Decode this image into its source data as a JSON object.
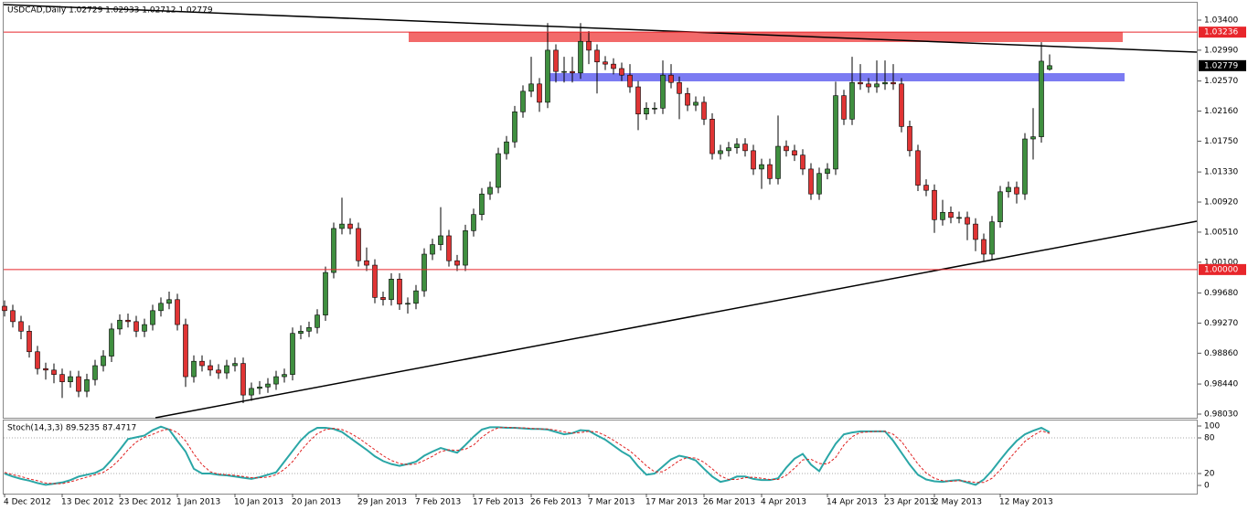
{
  "chart_data": [
    {
      "type": "candlestick",
      "title": "USDCAD,Daily  1.02729 1.02933 1.02712 1.02779",
      "up_color": "#3f8f3f",
      "down_color": "#e03434",
      "categories": [
        "4 Dec 2012",
        null,
        null,
        null,
        null,
        null,
        null,
        "13 Dec 2012",
        null,
        null,
        null,
        null,
        null,
        null,
        "23 Dec 2012",
        null,
        null,
        null,
        null,
        null,
        null,
        "1 Jan 2013",
        null,
        null,
        null,
        null,
        null,
        null,
        "10 Jan 2013",
        null,
        null,
        null,
        null,
        null,
        null,
        "20 Jan 2013",
        null,
        null,
        null,
        null,
        null,
        null,
        null,
        "29 Jan 2013",
        null,
        null,
        null,
        null,
        null,
        null,
        "7 Feb 2013",
        null,
        null,
        null,
        null,
        null,
        null,
        "17 Feb 2013",
        null,
        null,
        null,
        null,
        null,
        null,
        "26 Feb 2013",
        null,
        null,
        null,
        null,
        null,
        null,
        "7 Mar 2013",
        null,
        null,
        null,
        null,
        null,
        null,
        "17 Mar 2013",
        null,
        null,
        null,
        null,
        null,
        null,
        "26 Mar 2013",
        null,
        null,
        null,
        null,
        null,
        null,
        "4 Apr 2013",
        null,
        null,
        null,
        null,
        null,
        null,
        null,
        "14 Apr 2013",
        null,
        null,
        null,
        null,
        null,
        null,
        "23 Apr 2013",
        null,
        null,
        null,
        null,
        null,
        "2 May 2013",
        null,
        null,
        null,
        null,
        null,
        null,
        null,
        "12 May 2013",
        null,
        null,
        null,
        null,
        null,
        null
      ],
      "open": [
        0.995,
        0.9944,
        0.9929,
        0.9916,
        0.9888,
        0.9865,
        0.9863,
        0.9857,
        0.9847,
        0.9854,
        0.9834,
        0.985,
        0.9869,
        0.9882,
        0.9919,
        0.9931,
        0.9929,
        0.9916,
        0.9925,
        0.9944,
        0.9954,
        0.9959,
        0.9925,
        0.9854,
        0.9875,
        0.9869,
        0.9863,
        0.9859,
        0.9869,
        0.9872,
        0.9829,
        0.9838,
        0.984,
        0.9844,
        0.9854,
        0.9857,
        0.9913,
        0.9916,
        0.9921,
        0.9938,
        0.9996,
        1.0056,
        1.0062,
        1.0056,
        1.0012,
        1.0006,
        0.9962,
        0.9959,
        0.9987,
        0.9953,
        0.9954,
        0.9971,
        1.0021,
        1.0034,
        1.0046,
        1.0012,
        1.0006,
        1.0053,
        1.0075,
        1.0103,
        1.0112,
        1.0158,
        1.0174,
        1.0215,
        1.0243,
        1.0253,
        1.0228,
        1.0299,
        1.027,
        1.027,
        1.0268,
        1.0311,
        1.0299,
        1.0283,
        1.028,
        1.0274,
        1.0265,
        1.0249,
        1.0212,
        1.022,
        1.022,
        1.0265,
        1.0255,
        1.024,
        1.0224,
        1.0228,
        1.0205,
        1.0158,
        1.0162,
        1.0166,
        1.0171,
        1.0162,
        1.0137,
        1.0143,
        1.0124,
        1.0168,
        1.0162,
        1.0156,
        1.0137,
        1.0103,
        1.0131,
        1.0137,
        1.0237,
        1.0205,
        1.0255,
        1.0253,
        1.0249,
        1.0253,
        1.0255,
        1.0253,
        1.0195,
        1.0162,
        1.0115,
        1.0108,
        1.0068,
        1.0078,
        1.0071,
        1.0071,
        1.0062,
        1.0041,
        1.0021,
        1.0065,
        1.0106,
        1.0112,
        1.0103,
        1.0178,
        1.0181,
        1.02729
      ],
      "high": [
        0.9958,
        0.9952,
        0.9937,
        0.9924,
        0.9896,
        0.9873,
        0.9872,
        0.9865,
        0.9862,
        0.9862,
        0.9858,
        0.9877,
        0.989,
        0.9927,
        0.9939,
        0.994,
        0.9937,
        0.9933,
        0.9952,
        0.9962,
        0.997,
        0.9967,
        0.9933,
        0.9883,
        0.9883,
        0.9877,
        0.9871,
        0.9877,
        0.988,
        0.988,
        0.9846,
        0.9848,
        0.9852,
        0.9862,
        0.9865,
        0.9921,
        0.9924,
        0.9929,
        0.9946,
        1.0004,
        1.0064,
        1.0098,
        1.007,
        1.0064,
        1.003,
        1.0014,
        0.997,
        0.9995,
        0.9995,
        0.9962,
        0.9979,
        1.0029,
        1.0042,
        1.0085,
        1.0054,
        1.002,
        1.0061,
        1.0083,
        1.0111,
        1.012,
        1.0166,
        1.0182,
        1.0223,
        1.0251,
        1.029,
        1.0261,
        1.0336,
        1.0307,
        1.029,
        1.029,
        1.0336,
        1.0325,
        1.0307,
        1.0291,
        1.0288,
        1.0282,
        1.028,
        1.0257,
        1.0228,
        1.0228,
        1.0285,
        1.028,
        1.0263,
        1.0248,
        1.0236,
        1.0236,
        1.0213,
        1.017,
        1.0174,
        1.0179,
        1.0179,
        1.017,
        1.0151,
        1.0151,
        1.021,
        1.0176,
        1.017,
        1.0164,
        1.0145,
        1.0139,
        1.0145,
        1.0256,
        1.0245,
        1.029,
        1.028,
        1.0261,
        1.0285,
        1.0285,
        1.028,
        1.0261,
        1.0203,
        1.017,
        1.0123,
        1.0116,
        1.0095,
        1.0086,
        1.0079,
        1.0079,
        1.007,
        1.0049,
        1.0073,
        1.0114,
        1.012,
        1.012,
        1.0186,
        1.022,
        1.031,
        1.02933
      ],
      "low": [
        0.9936,
        0.9921,
        0.9905,
        0.988,
        0.9857,
        0.985,
        0.9845,
        0.9825,
        0.9839,
        0.9826,
        0.9826,
        0.9842,
        0.9861,
        0.9874,
        0.9911,
        0.9921,
        0.9908,
        0.9908,
        0.9917,
        0.9936,
        0.9946,
        0.9917,
        0.984,
        0.9846,
        0.9861,
        0.9855,
        0.9851,
        0.9851,
        0.9861,
        0.9818,
        0.9821,
        0.983,
        0.9832,
        0.9836,
        0.9846,
        0.9849,
        0.9905,
        0.9908,
        0.9913,
        0.993,
        0.9988,
        1.0048,
        1.0048,
        1.0004,
        0.9998,
        0.9954,
        0.9951,
        0.9951,
        0.9945,
        0.994,
        0.9946,
        0.9963,
        1.0013,
        1.0026,
        1.0004,
        0.9998,
        0.9998,
        1.0045,
        1.0067,
        1.0095,
        1.0104,
        1.015,
        1.0166,
        1.0207,
        1.0235,
        1.0215,
        1.022,
        1.0255,
        1.0255,
        1.0255,
        1.026,
        1.028,
        1.024,
        1.0272,
        1.0266,
        1.0257,
        1.0241,
        1.019,
        1.0204,
        1.0212,
        1.0212,
        1.0247,
        1.0205,
        1.0216,
        1.0216,
        1.0197,
        1.015,
        1.015,
        1.0154,
        1.0158,
        1.0154,
        1.0129,
        1.011,
        1.0116,
        1.0116,
        1.0154,
        1.0148,
        1.0129,
        1.0095,
        1.0095,
        1.0123,
        1.0129,
        1.0197,
        1.0197,
        1.0245,
        1.0241,
        1.0241,
        1.0245,
        1.0245,
        1.0187,
        1.0154,
        1.0107,
        1.01,
        1.005,
        1.006,
        1.0063,
        1.0063,
        1.004,
        1.0025,
        1.0012,
        1.0013,
        1.0057,
        1.0098,
        1.009,
        1.0095,
        1.015,
        1.0173,
        1.02712
      ],
      "close": [
        0.9944,
        0.9929,
        0.9916,
        0.9888,
        0.9865,
        0.9863,
        0.9857,
        0.9847,
        0.9854,
        0.9834,
        0.985,
        0.9869,
        0.9882,
        0.9919,
        0.9931,
        0.9929,
        0.9916,
        0.9925,
        0.9944,
        0.9954,
        0.9959,
        0.9925,
        0.9854,
        0.9875,
        0.9869,
        0.9863,
        0.9859,
        0.9869,
        0.9872,
        0.9829,
        0.9838,
        0.984,
        0.9844,
        0.9854,
        0.9857,
        0.9913,
        0.9916,
        0.9921,
        0.9938,
        0.9996,
        1.0056,
        1.0062,
        1.0056,
        1.0012,
        1.0006,
        0.9962,
        0.9959,
        0.9987,
        0.9953,
        0.9954,
        0.9971,
        1.0021,
        1.0034,
        1.0046,
        1.0012,
        1.0006,
        1.0053,
        1.0075,
        1.0103,
        1.0112,
        1.0158,
        1.0174,
        1.0215,
        1.0243,
        1.0253,
        1.0228,
        1.0299,
        1.027,
        1.027,
        1.0268,
        1.0311,
        1.0299,
        1.0283,
        1.028,
        1.0274,
        1.0265,
        1.0249,
        1.0212,
        1.022,
        1.022,
        1.0265,
        1.0255,
        1.024,
        1.0224,
        1.0228,
        1.0205,
        1.0158,
        1.0162,
        1.0166,
        1.0171,
        1.0162,
        1.0137,
        1.0143,
        1.0124,
        1.0168,
        1.0162,
        1.0156,
        1.0137,
        1.0103,
        1.0131,
        1.0137,
        1.0237,
        1.0205,
        1.0255,
        1.0253,
        1.0249,
        1.0253,
        1.0255,
        1.0253,
        1.0195,
        1.0162,
        1.0115,
        1.0108,
        1.0068,
        1.0078,
        1.0071,
        1.0071,
        1.0062,
        1.0041,
        1.0021,
        1.0065,
        1.0106,
        1.0112,
        1.0103,
        1.0178,
        1.0181,
        1.0284,
        1.02779
      ],
      "ylim": [
        0.9798,
        1.03674
      ],
      "yticks": [
        {
          "value": 1.034,
          "label": "1.03400"
        },
        {
          "value": 1.0299,
          "label": "1.02990"
        },
        {
          "value": 1.0257,
          "label": "1.02570"
        },
        {
          "value": 1.0216,
          "label": "1.02160"
        },
        {
          "value": 1.0175,
          "label": "1.01750"
        },
        {
          "value": 1.0133,
          "label": "1.01330"
        },
        {
          "value": 1.0092,
          "label": "1.00920"
        },
        {
          "value": 1.0051,
          "label": "1.00510"
        },
        {
          "value": 1.001,
          "label": "1.00100"
        },
        {
          "value": 0.9968,
          "label": "0.99680"
        },
        {
          "value": 0.9927,
          "label": "0.99270"
        },
        {
          "value": 0.9886,
          "label": "0.98860"
        },
        {
          "value": 0.9844,
          "label": "0.98440"
        },
        {
          "value": 0.9803,
          "label": "0.98030"
        }
      ],
      "markers": [
        {
          "value": 1.03236,
          "label": "1.03236",
          "color": "#e8262b",
          "line": true
        },
        {
          "value": 1.02779,
          "label": "1.02779",
          "color": "#000000",
          "line": false
        },
        {
          "value": 1.0,
          "label": "1.00000",
          "color": "#e8262b",
          "line": true
        }
      ]
    },
    {
      "type": "line",
      "title": "Stoch(14,3,3) 89.5235 87.4717",
      "ylim": [
        -13.8,
        110.8
      ],
      "yticks": [
        100,
        80,
        20,
        0
      ],
      "levels": [
        80,
        20
      ],
      "series": [
        {
          "color": "#2aa6a6",
          "width": 2,
          "dashed": false,
          "values": [
            20,
            15,
            11,
            8,
            4,
            1,
            3,
            5,
            9,
            15,
            18,
            21,
            28,
            43,
            60,
            78,
            81,
            84,
            93,
            99,
            94,
            75,
            57,
            28,
            20,
            20,
            18,
            17,
            15,
            13,
            11,
            14,
            18,
            22,
            40,
            58,
            76,
            89,
            97,
            97,
            95,
            90,
            80,
            70,
            60,
            49,
            41,
            36,
            33,
            36,
            40,
            50,
            57,
            63,
            59,
            55,
            68,
            82,
            94,
            98,
            98,
            97,
            97,
            96,
            95,
            95,
            94,
            90,
            86,
            88,
            93,
            92,
            84,
            77,
            67,
            57,
            49,
            32,
            18,
            20,
            32,
            44,
            50,
            47,
            42,
            28,
            15,
            6,
            9,
            15,
            15,
            11,
            9,
            9,
            12,
            30,
            45,
            53,
            35,
            24,
            48,
            70,
            86,
            89,
            91,
            91,
            91,
            91,
            75,
            55,
            35,
            18,
            10,
            7,
            6,
            8,
            9,
            5,
            1,
            10,
            25,
            43,
            60,
            75,
            86,
            92,
            97,
            89.5235
          ]
        },
        {
          "color": "#e02020",
          "width": 1,
          "dashed": true,
          "values": [
            22,
            18,
            15,
            11,
            8,
            4,
            3,
            3,
            6,
            10,
            14,
            18,
            22,
            31,
            44,
            60,
            73,
            81,
            86,
            92,
            95,
            89,
            75,
            53,
            35,
            23,
            19,
            18,
            17,
            15,
            13,
            13,
            14,
            18,
            27,
            40,
            58,
            74,
            87,
            94,
            96,
            94,
            88,
            80,
            70,
            60,
            50,
            42,
            37,
            35,
            36,
            42,
            49,
            57,
            60,
            59,
            61,
            68,
            81,
            91,
            97,
            98,
            97,
            97,
            96,
            95,
            95,
            93,
            90,
            88,
            89,
            91,
            90,
            84,
            76,
            67,
            58,
            46,
            33,
            23,
            23,
            32,
            42,
            47,
            46,
            39,
            28,
            16,
            10,
            10,
            13,
            14,
            12,
            10,
            10,
            17,
            29,
            43,
            44,
            37,
            36,
            47,
            68,
            82,
            89,
            90,
            91,
            91,
            86,
            74,
            55,
            36,
            21,
            12,
            8,
            7,
            8,
            7,
            5,
            5,
            12,
            26,
            43,
            59,
            74,
            84,
            92,
            87.4717
          ]
        }
      ]
    }
  ]
}
